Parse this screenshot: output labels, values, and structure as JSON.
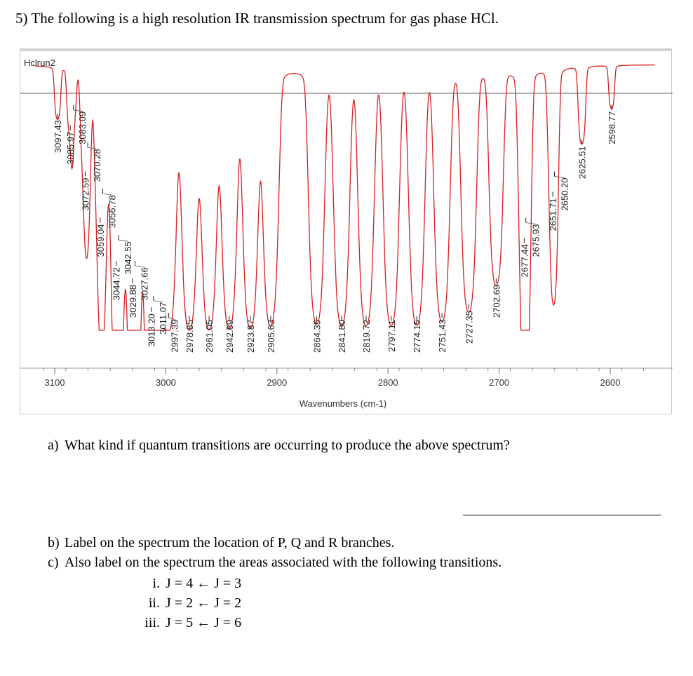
{
  "title": "5) The following is a high resolution IR transmission spectrum for gas phase HCl.",
  "questions": {
    "a_label": "a)",
    "a_text": "What kind if quantum transitions are occurring to produce the above spectrum?",
    "b_label": "b)",
    "b_text": "Label on the spectrum the location of P, Q and R branches.",
    "c_label": "c)",
    "c_text": "Also label on the spectrum the areas associated with the following transitions.",
    "items": [
      {
        "num": "i.",
        "text": "J = 4 ← J = 3"
      },
      {
        "num": "ii.",
        "text": "J = 2 ← J = 2"
      },
      {
        "num": "iii.",
        "text": "J = 5 ← J = 6"
      }
    ]
  },
  "chart_data": {
    "type": "line",
    "title": "Hclrun2",
    "xlabel": "Wavenumbers (cm-1)",
    "ylabel": "",
    "xlim": [
      3118,
      2558
    ],
    "x_reversed": true,
    "x_ticks": [
      "3100",
      "3000",
      "2900",
      "2800",
      "2700",
      "2600"
    ],
    "x_tick_values": [
      3100,
      3000,
      2900,
      2800,
      2700,
      2600
    ],
    "line_color": "#d62020",
    "reference_line_color": "#808080",
    "peaks": [
      {
        "label": "3097.43",
        "x": 3097.43,
        "min_transmittance": 82
      },
      {
        "label": "3085.97",
        "x": 3085.97,
        "min_transmittance": 78
      },
      {
        "label": "3083.09",
        "x": 3083.09,
        "min_transmittance": 85
      },
      {
        "label": "3072.59",
        "x": 3072.59,
        "min_transmittance": 62
      },
      {
        "label": "3070.28",
        "x": 3070.28,
        "min_transmittance": 72
      },
      {
        "label": "3059.04",
        "x": 3059.04,
        "min_transmittance": 46
      },
      {
        "label": "3056.78",
        "x": 3056.78,
        "min_transmittance": 56
      },
      {
        "label": "3044.72",
        "x": 3044.72,
        "min_transmittance": 31
      },
      {
        "label": "3042.55",
        "x": 3042.55,
        "min_transmittance": 40
      },
      {
        "label": "3029.88",
        "x": 3029.88,
        "min_transmittance": 25
      },
      {
        "label": "3027.66",
        "x": 3027.66,
        "min_transmittance": 31
      },
      {
        "label": "3013.20",
        "x": 3013.2,
        "min_transmittance": 15
      },
      {
        "label": "3011.07",
        "x": 3011.07,
        "min_transmittance": 19
      },
      {
        "label": "2997.39",
        "x": 2997.39,
        "min_transmittance": 13
      },
      {
        "label": "2978.85",
        "x": 2978.85,
        "min_transmittance": 12
      },
      {
        "label": "2961.05",
        "x": 2961.05,
        "min_transmittance": 12
      },
      {
        "label": "2942.89",
        "x": 2942.89,
        "min_transmittance": 12
      },
      {
        "label": "2923.87",
        "x": 2923.87,
        "min_transmittance": 12
      },
      {
        "label": "2905.63",
        "x": 2905.63,
        "min_transmittance": 12
      },
      {
        "label": "2864.35",
        "x": 2864.35,
        "min_transmittance": 12
      },
      {
        "label": "2841.80",
        "x": 2841.8,
        "min_transmittance": 12
      },
      {
        "label": "2819.72",
        "x": 2819.72,
        "min_transmittance": 12
      },
      {
        "label": "2797.11",
        "x": 2797.11,
        "min_transmittance": 12
      },
      {
        "label": "2774.15",
        "x": 2774.15,
        "min_transmittance": 12
      },
      {
        "label": "2751.43",
        "x": 2751.43,
        "min_transmittance": 13
      },
      {
        "label": "2727.35",
        "x": 2727.35,
        "min_transmittance": 16
      },
      {
        "label": "2702.69",
        "x": 2702.69,
        "min_transmittance": 25
      },
      {
        "label": "2677.44",
        "x": 2677.44,
        "min_transmittance": 39
      },
      {
        "label": "2675.93",
        "x": 2675.93,
        "min_transmittance": 46
      },
      {
        "label": "2651.71",
        "x": 2651.71,
        "min_transmittance": 55
      },
      {
        "label": "2650.20",
        "x": 2650.2,
        "min_transmittance": 62
      },
      {
        "label": "2625.51",
        "x": 2625.51,
        "min_transmittance": 73
      },
      {
        "label": "2598.77",
        "x": 2598.77,
        "min_transmittance": 85
      }
    ]
  }
}
